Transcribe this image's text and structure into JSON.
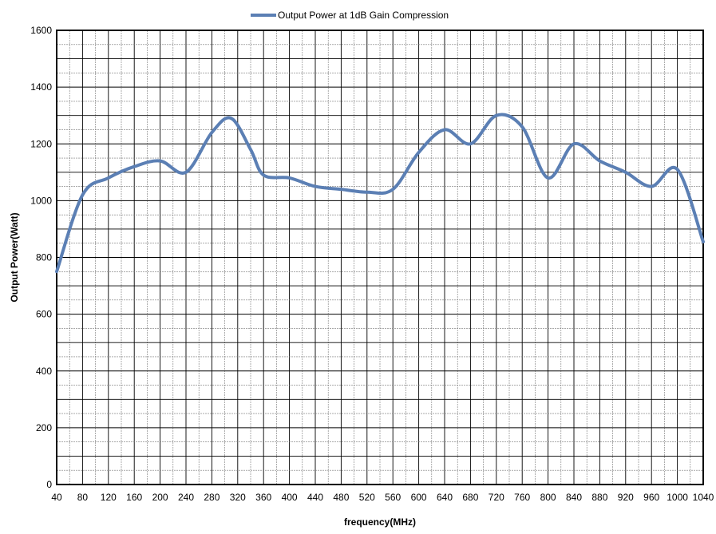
{
  "chart_data": {
    "type": "line",
    "title": "",
    "xlabel": "frequency(MHz)",
    "ylabel": "Output Power(Watt)",
    "xlim": [
      40,
      1040
    ],
    "ylim": [
      0,
      1600
    ],
    "grid": true,
    "legend_position": "top-center",
    "x_ticks": [
      40,
      80,
      120,
      160,
      200,
      240,
      280,
      320,
      360,
      400,
      440,
      480,
      520,
      560,
      600,
      640,
      680,
      720,
      760,
      800,
      840,
      880,
      920,
      960,
      1000,
      1040
    ],
    "x_tick_labels": [
      "40",
      "80",
      "120",
      "160",
      "200",
      "240",
      "280",
      "320",
      "360",
      "400",
      "440",
      "480",
      "520",
      "560",
      "600",
      "640",
      "680",
      "720",
      "760",
      "800",
      "840",
      "880",
      "920",
      "960",
      "1000",
      "1040"
    ],
    "y_ticks": [
      0,
      200,
      400,
      600,
      800,
      1000,
      1200,
      1400,
      1600
    ],
    "y_tick_labels": [
      "0",
      "200",
      "400",
      "600",
      "800",
      "1000",
      "1200",
      "1400",
      "1600"
    ],
    "series": [
      {
        "name": "Output Power at 1dB Gain Compression",
        "color": "#5b7fb4",
        "x": [
          40,
          80,
          120,
          160,
          200,
          240,
          280,
          310,
          340,
          360,
          400,
          440,
          480,
          520,
          560,
          600,
          640,
          680,
          720,
          760,
          800,
          840,
          880,
          920,
          960,
          1000,
          1040
        ],
        "y": [
          750,
          1020,
          1080,
          1120,
          1140,
          1100,
          1240,
          1290,
          1180,
          1090,
          1080,
          1050,
          1040,
          1030,
          1040,
          1170,
          1250,
          1200,
          1300,
          1260,
          1080,
          1200,
          1140,
          1100,
          1050,
          1110,
          855
        ]
      }
    ]
  }
}
